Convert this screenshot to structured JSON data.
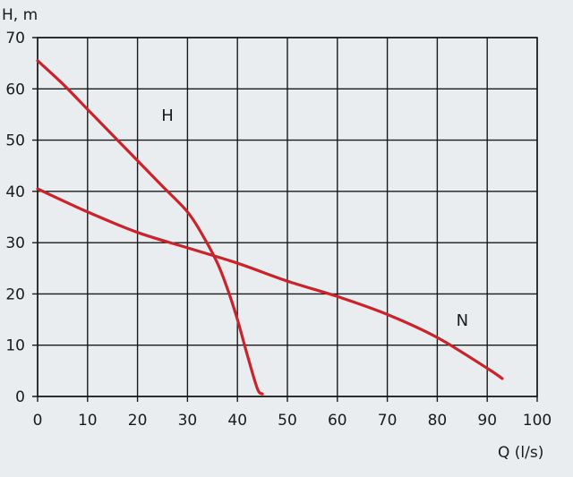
{
  "chart_data": {
    "type": "line",
    "title": "",
    "xlabel": "Q (l/s)",
    "ylabel": "H, m",
    "xlim": [
      0,
      100
    ],
    "ylim": [
      0,
      70
    ],
    "x_ticks": [
      0,
      10,
      20,
      30,
      40,
      50,
      60,
      70,
      80,
      90,
      100
    ],
    "y_ticks": [
      0,
      10,
      20,
      30,
      40,
      50,
      60,
      70
    ],
    "grid": true,
    "legend": "none",
    "line_color": "#c8242b",
    "series": [
      {
        "name": "H",
        "x": [
          0,
          5,
          10,
          15,
          20,
          25,
          30,
          33,
          36,
          38,
          40,
          42,
          44,
          45
        ],
        "y": [
          65.5,
          61,
          56,
          51,
          46,
          41,
          36,
          31.5,
          26,
          21,
          15,
          8,
          1.5,
          0.5
        ]
      },
      {
        "name": "N",
        "x": [
          0,
          10,
          20,
          30,
          40,
          50,
          60,
          70,
          80,
          90,
          93
        ],
        "y": [
          40.5,
          36,
          32,
          29,
          26,
          22.5,
          19.5,
          16,
          11.5,
          5.5,
          3.5
        ]
      }
    ]
  }
}
